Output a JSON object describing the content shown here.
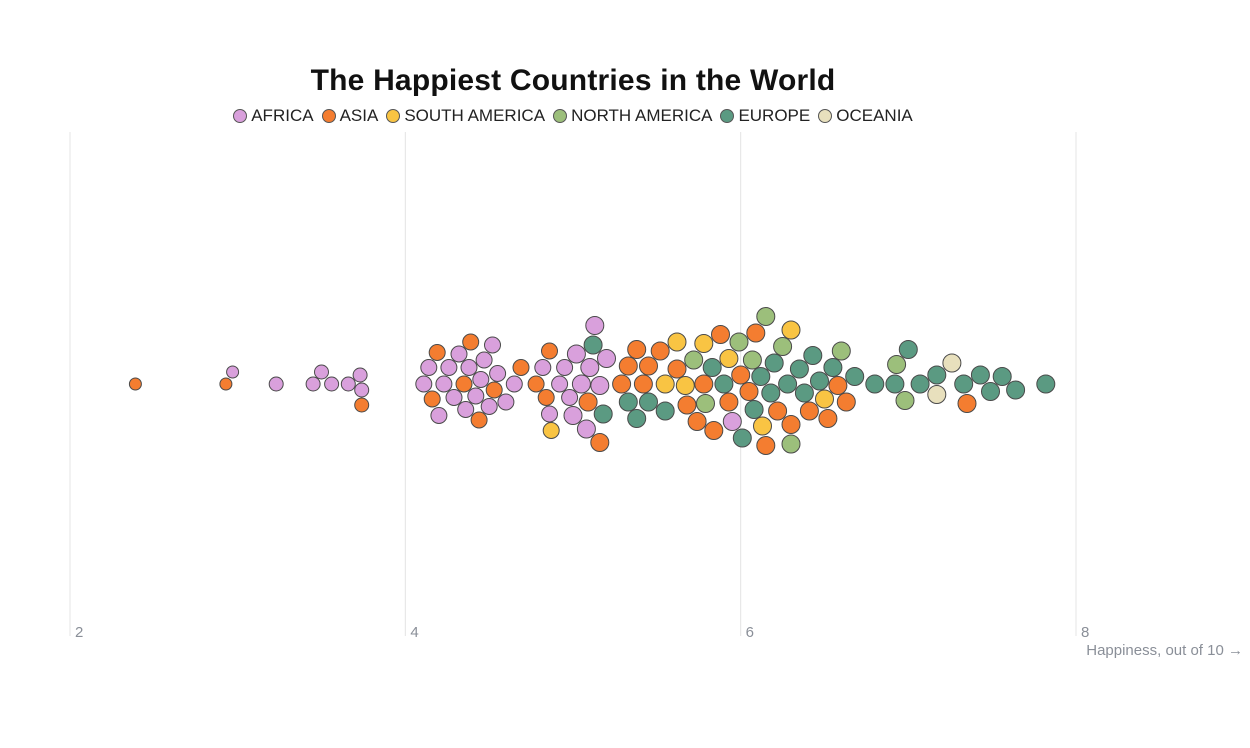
{
  "chart_data": {
    "type": "scatter",
    "title": "The Happiest Countries in the World",
    "xlabel": "Happiness, out of 10 →",
    "ylabel": "",
    "xlim": [
      2,
      8
    ],
    "x_ticks": [
      "2",
      "4",
      "6",
      "8"
    ],
    "grid": true,
    "legend_position": "top",
    "series": [
      {
        "name": "AFRICA",
        "color": "#d9a0dc",
        "x": [
          2.97,
          3.23,
          3.45,
          3.5,
          3.56,
          3.66,
          3.73,
          3.74,
          4.11,
          4.14,
          4.2,
          4.23,
          4.26,
          4.29,
          4.32,
          4.36,
          4.38,
          4.42,
          4.45,
          4.47,
          4.5,
          4.52,
          4.55,
          4.6,
          4.65,
          4.82,
          4.86,
          4.92,
          4.95,
          4.98,
          5.0,
          5.02,
          5.05,
          5.08,
          5.1,
          5.13,
          5.16,
          5.2,
          5.95
        ],
        "sizes": [
          1,
          1,
          1,
          1,
          1,
          1,
          1,
          1,
          1,
          1,
          1,
          1,
          1,
          1,
          1,
          1,
          1,
          1,
          1,
          1,
          1,
          1,
          1,
          1,
          1,
          1,
          1,
          1,
          1,
          1,
          1,
          1,
          1,
          1,
          1,
          1,
          1,
          1,
          1
        ]
      },
      {
        "name": "ASIA",
        "color": "#f47d30",
        "x": [
          2.39,
          2.93,
          3.74,
          4.16,
          4.19,
          4.35,
          4.39,
          4.44,
          4.53,
          4.69,
          4.78,
          4.84,
          4.86,
          5.09,
          5.16,
          5.29,
          5.33,
          5.38,
          5.42,
          5.45,
          5.52,
          5.62,
          5.68,
          5.74,
          5.78,
          5.84,
          5.88,
          5.93,
          6.0,
          6.05,
          6.09,
          6.15,
          6.22,
          6.3,
          6.41,
          6.52,
          6.58,
          6.63,
          7.35
        ],
        "sizes": [
          1,
          1,
          1,
          1,
          1,
          1,
          1,
          1,
          1,
          1,
          1,
          1,
          1,
          1,
          1,
          1,
          1,
          1,
          1,
          1,
          1,
          1,
          1,
          1,
          1,
          1,
          1,
          1,
          1,
          1,
          1,
          1,
          1,
          1,
          1,
          1,
          1,
          1,
          1
        ]
      },
      {
        "name": "SOUTH AMERICA",
        "color": "#f9c443",
        "x": [
          4.87,
          5.55,
          5.62,
          5.67,
          5.78,
          5.93,
          6.13,
          6.3,
          6.5
        ],
        "sizes": [
          1,
          1,
          1,
          1,
          1,
          1,
          1,
          1,
          1
        ]
      },
      {
        "name": "NORTH AMERICA",
        "color": "#9cbf7b",
        "x": [
          5.72,
          5.79,
          5.99,
          6.07,
          6.15,
          6.25,
          6.3,
          6.6,
          6.93,
          6.98
        ],
        "sizes": [
          1,
          1,
          1,
          1,
          1,
          1,
          1,
          1,
          1,
          1
        ]
      },
      {
        "name": "EUROPE",
        "color": "#5b9a82",
        "x": [
          5.12,
          5.18,
          5.33,
          5.38,
          5.45,
          5.55,
          5.83,
          5.9,
          6.01,
          6.08,
          6.12,
          6.18,
          6.2,
          6.28,
          6.35,
          6.38,
          6.43,
          6.47,
          6.55,
          6.68,
          6.8,
          6.92,
          7.0,
          7.07,
          7.17,
          7.33,
          7.43,
          7.49,
          7.56,
          7.64,
          7.82
        ],
        "sizes": [
          1,
          1,
          1,
          1,
          1,
          1,
          1,
          1,
          1,
          1,
          1,
          1,
          1,
          1,
          1,
          1,
          1,
          1,
          1,
          1,
          1,
          1,
          1,
          1,
          1,
          1,
          1,
          1,
          1,
          1,
          1
        ]
      },
      {
        "name": "OCEANIA",
        "color": "#e8e0bd",
        "x": [
          7.17,
          7.26
        ],
        "sizes": [
          1,
          1
        ]
      }
    ]
  }
}
